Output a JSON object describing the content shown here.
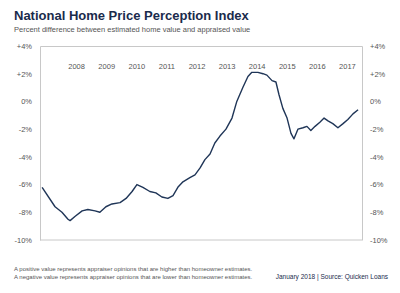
{
  "chart_data": {
    "type": "line",
    "title": "National Home Price Perception Index",
    "subtitle": "Percent difference between estimated home value and appraised value",
    "annotations": [
      "A positive value represents appraiser opinions that are higher than homeowner estimates.",
      "A negative value represents appraiser opinions that are lower than homeowner estimates.",
      "January 2018 | Source: Quicken Loans"
    ],
    "color": "#1f3557",
    "grid": false,
    "x": [
      2007.37,
      2007.8,
      2008.03,
      2008.23,
      2008.3,
      2008.46,
      2008.7,
      2008.89,
      2009.13,
      2009.29,
      2009.49,
      2009.69,
      2009.96,
      2010.16,
      2010.36,
      2010.52,
      2010.72,
      2010.95,
      2011.15,
      2011.35,
      2011.55,
      2011.72,
      2011.88,
      2012.05,
      2012.28,
      2012.45,
      2012.62,
      2012.78,
      2012.95,
      2013.11,
      2013.28,
      2013.48,
      2013.68,
      2013.84,
      2014.04,
      2014.21,
      2014.34,
      2014.54,
      2014.71,
      2014.84,
      2015.01,
      2015.14,
      2015.24,
      2015.37,
      2015.51,
      2015.64,
      2015.74,
      2015.87,
      2016.04,
      2016.17,
      2016.3,
      2016.44,
      2016.6,
      2016.74,
      2016.87,
      2017.03,
      2017.2,
      2017.37,
      2017.53,
      2017.7,
      2017.87
    ],
    "values": [
      -6.2,
      -7.6,
      -8.0,
      -8.5,
      -8.6,
      -8.3,
      -7.9,
      -7.8,
      -7.9,
      -8.0,
      -7.6,
      -7.4,
      -7.3,
      -7.0,
      -6.5,
      -6.0,
      -6.2,
      -6.5,
      -6.6,
      -6.9,
      -7.0,
      -6.8,
      -6.2,
      -5.8,
      -5.5,
      -5.3,
      -4.8,
      -4.2,
      -3.8,
      -3.0,
      -2.5,
      -2.0,
      -1.2,
      0.0,
      1.0,
      1.8,
      2.1,
      2.1,
      2.0,
      1.9,
      1.5,
      1.4,
      0.5,
      -0.5,
      -1.2,
      -2.3,
      -2.7,
      -2.0,
      -1.9,
      -1.8,
      -2.1,
      -1.8,
      -1.5,
      -1.2,
      -1.4,
      -1.6,
      -1.9,
      -1.6,
      -1.3,
      -0.9,
      -0.6
    ],
    "xlim": [
      2007.3,
      2018.0
    ],
    "xticks": [
      {
        "value": 2008.5,
        "label": "2008"
      },
      {
        "value": 2009.5,
        "label": "2009"
      },
      {
        "value": 2010.5,
        "label": "2010"
      },
      {
        "value": 2011.5,
        "label": "2011"
      },
      {
        "value": 2012.5,
        "label": "2012"
      },
      {
        "value": 2013.5,
        "label": "2013"
      },
      {
        "value": 2014.5,
        "label": "2014"
      },
      {
        "value": 2015.5,
        "label": "2015"
      },
      {
        "value": 2016.5,
        "label": "2016"
      },
      {
        "value": 2017.5,
        "label": "2017"
      }
    ],
    "ylim": [
      -10,
      4
    ],
    "yticks": [
      {
        "value": 4,
        "label": "+4%"
      },
      {
        "value": 2,
        "label": "+2%"
      },
      {
        "value": 0,
        "label": "0%"
      },
      {
        "value": -2,
        "label": "-2%"
      },
      {
        "value": -4,
        "label": "-4%"
      },
      {
        "value": -6,
        "label": "-6%"
      },
      {
        "value": -8,
        "label": "-8%"
      },
      {
        "value": -10,
        "label": "-10%"
      }
    ]
  }
}
